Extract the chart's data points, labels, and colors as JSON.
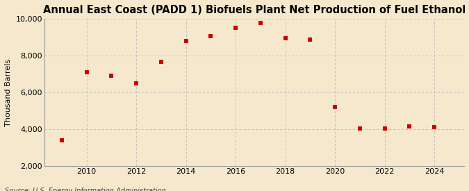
{
  "title": "Annual East Coast (PADD 1) Biofuels Plant Net Production of Fuel Ethanol",
  "ylabel": "Thousand Barrels",
  "source_text": "Source: U.S. Energy Information Administration",
  "background_color": "#f5e8cc",
  "plot_bg_color": "#fdf6e3",
  "marker_color": "#cc0000",
  "years": [
    2009,
    2010,
    2011,
    2012,
    2013,
    2014,
    2015,
    2016,
    2017,
    2018,
    2019,
    2020,
    2021,
    2022,
    2023,
    2024
  ],
  "values": [
    3380,
    7100,
    6900,
    6500,
    7650,
    8800,
    9050,
    9520,
    9780,
    8950,
    8880,
    5200,
    4050,
    4050,
    4150,
    4100
  ],
  "ylim": [
    2000,
    10000
  ],
  "yticks": [
    2000,
    4000,
    6000,
    8000,
    10000
  ],
  "xlim": [
    2008.3,
    2025.2
  ],
  "xticks": [
    2010,
    2012,
    2014,
    2016,
    2018,
    2020,
    2022,
    2024
  ],
  "grid_color": "#bbbbbb",
  "title_fontsize": 10.5,
  "label_fontsize": 8,
  "tick_fontsize": 8,
  "source_fontsize": 7
}
